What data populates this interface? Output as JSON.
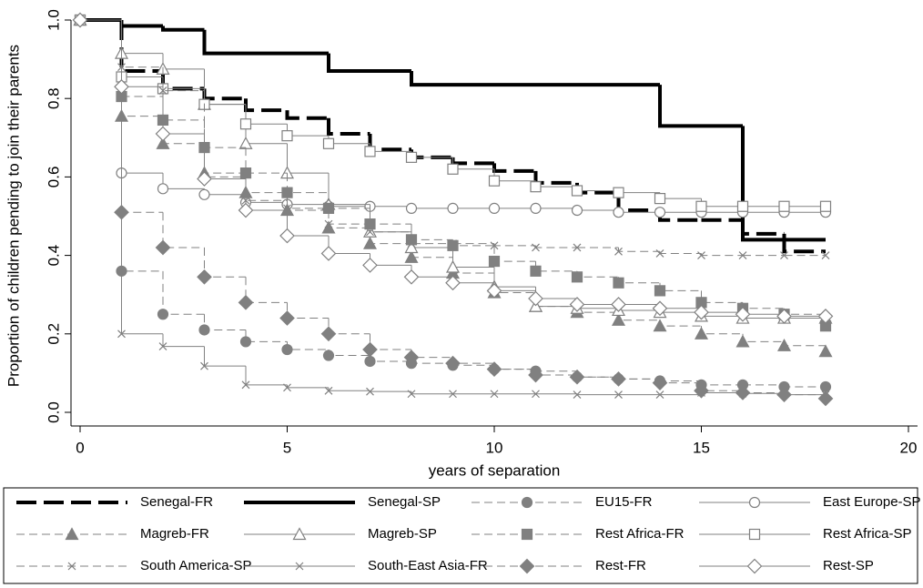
{
  "chart_data": {
    "type": "step",
    "x_label": "years of separation",
    "y_label": "Proportion of children pending to join their parents",
    "xlim": [
      0,
      20
    ],
    "xticks": [
      0,
      5,
      10,
      15,
      20
    ],
    "ylim": [
      0,
      1
    ],
    "yticks": [
      {
        "value": 0,
        "label": "0.0"
      },
      0.2,
      0.4,
      0.6,
      0.8,
      {
        "value": 1,
        "label": "1.0"
      }
    ],
    "x": [
      0,
      1,
      2,
      3,
      4,
      5,
      6,
      7,
      8,
      9,
      10,
      11,
      12,
      13,
      14,
      15,
      16,
      17,
      18
    ],
    "series": [
      {
        "name": "Senegal-FR",
        "color": "#000000",
        "width": 4,
        "dashed": true,
        "marker": "none",
        "filled": false,
        "values": [
          1.0,
          0.87,
          0.825,
          0.8,
          0.77,
          0.75,
          0.71,
          0.67,
          0.65,
          0.635,
          0.615,
          0.585,
          0.56,
          0.515,
          0.49,
          0.49,
          0.455,
          0.41,
          0.41
        ]
      },
      {
        "name": "Senegal-SP",
        "color": "#000000",
        "width": 4,
        "dashed": false,
        "marker": "none",
        "filled": false,
        "values": [
          1.0,
          0.985,
          0.975,
          0.915,
          0.915,
          0.915,
          0.87,
          0.87,
          0.835,
          0.835,
          0.835,
          0.835,
          0.835,
          0.835,
          0.73,
          0.73,
          0.44,
          0.44,
          0.44
        ]
      },
      {
        "name": "EU15-FR",
        "color": "#808080",
        "width": 1,
        "dashed": true,
        "marker": "circle",
        "filled": true,
        "values": [
          1.0,
          0.36,
          0.25,
          0.21,
          0.18,
          0.16,
          0.145,
          0.13,
          0.125,
          0.12,
          0.11,
          0.105,
          0.09,
          0.085,
          0.08,
          0.07,
          0.07,
          0.065,
          0.065
        ]
      },
      {
        "name": "East Europe-SP",
        "color": "#808080",
        "width": 1,
        "dashed": false,
        "marker": "circle",
        "filled": false,
        "values": [
          1.0,
          0.61,
          0.57,
          0.555,
          0.535,
          0.53,
          0.525,
          0.525,
          0.52,
          0.52,
          0.52,
          0.52,
          0.515,
          0.51,
          0.51,
          0.51,
          0.51,
          0.51,
          0.51
        ]
      },
      {
        "name": "Magreb-FR",
        "color": "#808080",
        "width": 1,
        "dashed": true,
        "marker": "triangle",
        "filled": true,
        "values": [
          1.0,
          0.755,
          0.685,
          0.61,
          0.56,
          0.515,
          0.47,
          0.43,
          0.395,
          0.355,
          0.305,
          0.27,
          0.255,
          0.235,
          0.22,
          0.2,
          0.18,
          0.17,
          0.155
        ]
      },
      {
        "name": "Magreb-SP",
        "color": "#808080",
        "width": 1,
        "dashed": false,
        "marker": "triangle",
        "filled": false,
        "values": [
          1.0,
          0.915,
          0.875,
          0.785,
          0.685,
          0.61,
          0.53,
          0.46,
          0.42,
          0.37,
          0.32,
          0.27,
          0.265,
          0.26,
          0.255,
          0.245,
          0.24,
          0.24,
          0.24
        ]
      },
      {
        "name": "Rest Africa-FR",
        "color": "#808080",
        "width": 1,
        "dashed": true,
        "marker": "square",
        "filled": true,
        "values": [
          1.0,
          0.805,
          0.745,
          0.675,
          0.61,
          0.56,
          0.52,
          0.48,
          0.44,
          0.425,
          0.385,
          0.36,
          0.345,
          0.33,
          0.31,
          0.28,
          0.265,
          0.25,
          0.22
        ]
      },
      {
        "name": "Rest Africa-SP",
        "color": "#808080",
        "width": 1,
        "dashed": false,
        "marker": "square",
        "filled": false,
        "values": [
          1.0,
          0.855,
          0.825,
          0.785,
          0.735,
          0.705,
          0.685,
          0.665,
          0.65,
          0.62,
          0.59,
          0.575,
          0.565,
          0.56,
          0.545,
          0.525,
          0.525,
          0.525,
          0.525
        ]
      },
      {
        "name": "South America-SP",
        "color": "#808080",
        "width": 1,
        "dashed": true,
        "marker": "cross",
        "filled": false,
        "values": [
          1.0,
          0.88,
          0.82,
          0.6,
          0.54,
          0.52,
          0.48,
          0.46,
          0.43,
          0.43,
          0.425,
          0.42,
          0.42,
          0.41,
          0.405,
          0.4,
          0.4,
          0.4,
          0.4
        ]
      },
      {
        "name": "South-East Asia-FR",
        "color": "#808080",
        "width": 1,
        "dashed": false,
        "marker": "cross",
        "filled": false,
        "values": [
          1.0,
          0.2,
          0.168,
          0.118,
          0.07,
          0.063,
          0.055,
          0.053,
          0.047,
          0.047,
          0.047,
          0.047,
          0.045,
          0.045,
          0.045,
          0.05,
          0.048,
          0.045,
          0.045
        ]
      },
      {
        "name": "Rest-FR",
        "color": "#808080",
        "width": 1,
        "dashed": true,
        "marker": "diamond",
        "filled": true,
        "values": [
          1.0,
          0.51,
          0.42,
          0.345,
          0.28,
          0.24,
          0.2,
          0.16,
          0.14,
          0.125,
          0.11,
          0.095,
          0.09,
          0.085,
          0.075,
          0.055,
          0.05,
          0.045,
          0.035
        ]
      },
      {
        "name": "Rest-SP",
        "color": "#808080",
        "width": 1,
        "dashed": false,
        "marker": "diamond",
        "filled": false,
        "values": [
          1.0,
          0.83,
          0.71,
          0.595,
          0.515,
          0.45,
          0.405,
          0.375,
          0.345,
          0.33,
          0.31,
          0.29,
          0.275,
          0.275,
          0.265,
          0.255,
          0.25,
          0.245,
          0.245
        ]
      }
    ]
  }
}
